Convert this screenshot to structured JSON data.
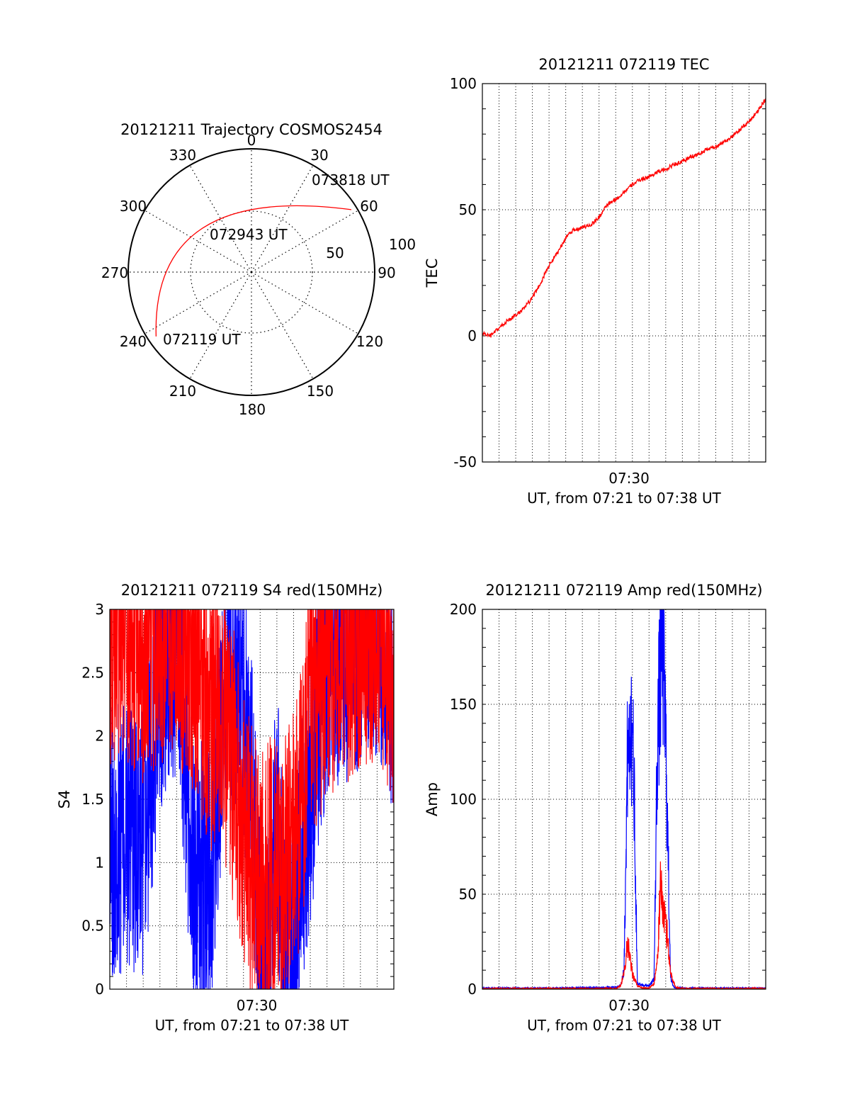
{
  "colors": {
    "red": "#ff0000",
    "blue": "#0000ff",
    "black": "#000000"
  },
  "chart_data": [
    {
      "id": "polar",
      "type": "polar-trajectory",
      "title": "20121211 Trajectory COSMOS2454",
      "azimuth_labels": [
        "0",
        "30",
        "60",
        "90",
        "120",
        "150",
        "180",
        "210",
        "240",
        "270",
        "300",
        "330"
      ],
      "radial_labels": [
        "50",
        "100"
      ],
      "points": [
        {
          "label": "072119 UT",
          "azimuth": 236,
          "elevation": 6
        },
        {
          "label": "072943 UT",
          "azimuth": 312,
          "elevation": 42
        },
        {
          "label": "073818 UT",
          "azimuth": 58,
          "elevation": 4
        }
      ]
    },
    {
      "id": "tec",
      "type": "line",
      "title": "20121211 072119 TEC",
      "ylabel": "TEC",
      "xlabel": "UT, from 07:21 to 07:38 UT",
      "xtick_labels": [
        "07:30"
      ],
      "ylim": [
        -50,
        100
      ],
      "yticks": [
        "-50",
        "0",
        "50",
        "100"
      ],
      "grid": true,
      "series": [
        {
          "color": "red",
          "x": [
            0,
            0.5,
            1,
            1.5,
            2,
            2.5,
            3,
            3.5,
            4,
            4.5,
            5,
            5.5,
            6,
            6.5,
            7,
            7.5,
            8,
            8.5,
            9,
            9.5,
            10,
            10.5,
            11,
            11.5,
            12,
            12.5,
            13,
            13.5,
            14,
            14.5,
            15,
            15.5,
            16,
            16.5,
            17
          ],
          "y": [
            1,
            0,
            3,
            6,
            8,
            11,
            15,
            21,
            28,
            33,
            39,
            42,
            43,
            44,
            47,
            52,
            54,
            57,
            60,
            62,
            63,
            65,
            66,
            68,
            69,
            71,
            72,
            74,
            75,
            77,
            79,
            82,
            85,
            89,
            94
          ]
        }
      ]
    },
    {
      "id": "s4",
      "type": "line",
      "title": "20121211 072119 S4 red(150MHz)",
      "ylabel": "S4",
      "xlabel": "UT, from 07:21 to 07:38 UT",
      "xtick_labels": [
        "07:30"
      ],
      "ylim": [
        0,
        3
      ],
      "yticks": [
        "0",
        "0.5",
        "1",
        "1.5",
        "2",
        "2.5",
        "3"
      ],
      "grid": true,
      "series": [
        {
          "color": "blue",
          "x": [
            0,
            1,
            2,
            3,
            4,
            5,
            6,
            7,
            8,
            8.5,
            9,
            9.5,
            10,
            10.5,
            11,
            11.5,
            12,
            13,
            14,
            15,
            16,
            17
          ],
          "y": [
            1.2,
            1.2,
            1.15,
            2.5,
            2.8,
            0.9,
            0.85,
            2.6,
            2.2,
            1.6,
            0.15,
            0.35,
            1.4,
            0.15,
            0.2,
            1.1,
            1.6,
            2.6,
            2.7,
            2.8,
            2.9,
            2.5
          ]
        },
        {
          "color": "red",
          "x": [
            0,
            1,
            2,
            3,
            4,
            5,
            6,
            7,
            7.5,
            8,
            8.5,
            9,
            9.5,
            10,
            10.5,
            11,
            11.5,
            12,
            13,
            14,
            15,
            16,
            17
          ],
          "y": [
            2.8,
            2.9,
            2.7,
            2.8,
            2.9,
            2.6,
            2.2,
            2.0,
            1.7,
            1.3,
            1.0,
            0.8,
            0.9,
            1.0,
            0.9,
            1.2,
            1.5,
            2.2,
            2.6,
            2.7,
            2.8,
            2.9,
            2.5
          ]
        }
      ]
    },
    {
      "id": "amp",
      "type": "line",
      "title": "20121211 072119 Amp red(150MHz)",
      "ylabel": "Amp",
      "xlabel": "UT, from 07:21 to 07:38 UT",
      "xtick_labels": [
        "07:30"
      ],
      "ylim": [
        0,
        200
      ],
      "yticks": [
        "0",
        "50",
        "100",
        "150",
        "200"
      ],
      "grid": true,
      "series": [
        {
          "color": "blue",
          "x": [
            0,
            4,
            8,
            8.3,
            8.5,
            8.7,
            8.9,
            9.1,
            9.3,
            9.6,
            10,
            10.3,
            10.5,
            10.8,
            11,
            11.3,
            11.5,
            12,
            17
          ],
          "y": [
            0.5,
            0.5,
            1,
            2,
            10,
            120,
            145,
            110,
            3,
            2,
            2,
            5,
            130,
            188,
            130,
            5,
            1,
            0.5,
            0.5
          ]
        },
        {
          "color": "red",
          "x": [
            0,
            8,
            8.3,
            8.5,
            8.7,
            9,
            9.3,
            9.6,
            10,
            10.3,
            10.5,
            10.7,
            10.9,
            11.1,
            11.3,
            11.6,
            12,
            17
          ],
          "y": [
            0.2,
            0.3,
            2,
            8,
            25,
            8,
            2,
            0.5,
            0.5,
            3,
            15,
            55,
            38,
            28,
            8,
            1,
            0.3,
            0.2
          ]
        }
      ]
    }
  ]
}
